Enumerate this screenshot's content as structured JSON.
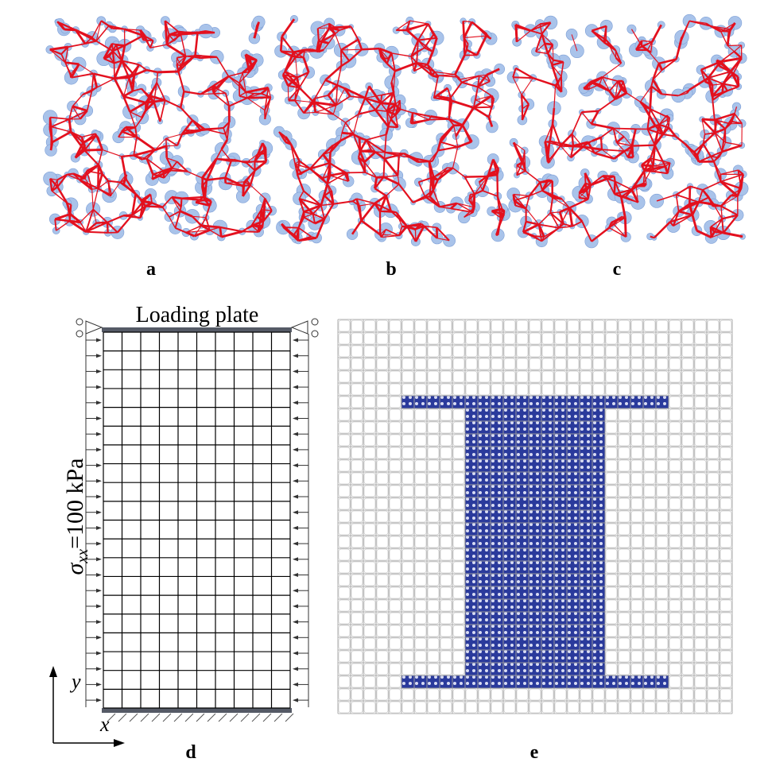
{
  "panels": {
    "a": "a",
    "b": "b",
    "c": "c",
    "d": "d",
    "e": "e"
  },
  "model": {
    "loading_plate": "Loading plate",
    "stress": {
      "symbol": "σ",
      "subscript": "xx",
      "text": "=100 kPa"
    },
    "axis_x": "x",
    "axis_y": "y"
  }
}
